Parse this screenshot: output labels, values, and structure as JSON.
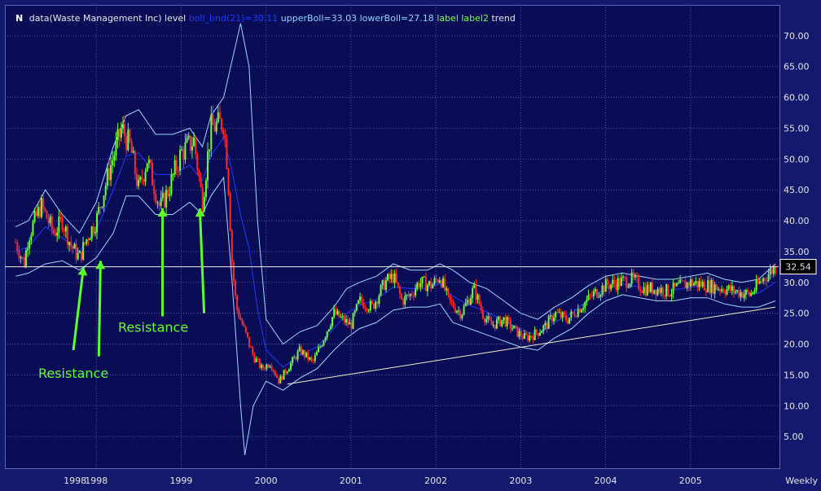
{
  "legend": {
    "symbol": "N",
    "data_label": "data(Waste Management Inc)",
    "level_label": "level",
    "boll_label": "boll_bnd(21)=30.11",
    "upper_label": "upperBoll=33.03",
    "lower_label": "lowerBoll=27.18",
    "label_label": "label",
    "label2_label": "label2",
    "trend_label": "trend"
  },
  "period_label": "Weekly",
  "colors": {
    "background": "#0a0c55",
    "grid": "#4a5aa8",
    "bull": "#6cff3c",
    "bear": "#ff2a2a",
    "boll_mid": "#1e3cff",
    "boll_bands": "#9fd8ff",
    "level_line": "#f2f2e0",
    "trend_line": "#f2f2c8",
    "annotation": "#5cff2a"
  },
  "chart_data": {
    "type": "candlestick",
    "title": "data(Waste Management Inc)",
    "ylim": [
      0,
      75
    ],
    "y_ticks": [
      "5.00",
      "10.00",
      "15.00",
      "20.00",
      "25.00",
      "30.00",
      "35.00",
      "40.00",
      "45.00",
      "50.00",
      "55.00",
      "60.00",
      "65.00",
      "70.00"
    ],
    "x_ticks": [
      "1998",
      "1998",
      "1999",
      "2000",
      "2001",
      "2002",
      "2003",
      "2004",
      "2005"
    ],
    "x_tick_positions": [
      1997.75,
      1998.0,
      1999.0,
      2000.0,
      2001.0,
      2002.0,
      2003.0,
      2004.0,
      2005.0
    ],
    "xlim": [
      1997.0,
      2006.0
    ],
    "last_price": "32.54",
    "level": 32.54,
    "close_path": [
      [
        1997.05,
        36.5
      ],
      [
        1997.15,
        33.0
      ],
      [
        1997.2,
        37.5
      ],
      [
        1997.35,
        42.5
      ],
      [
        1997.5,
        38.0
      ],
      [
        1997.6,
        40.0
      ],
      [
        1997.7,
        36.0
      ],
      [
        1997.8,
        34.0
      ],
      [
        1997.9,
        37.5
      ],
      [
        1998.0,
        40.0
      ],
      [
        1998.15,
        48.0
      ],
      [
        1998.3,
        55.0
      ],
      [
        1998.4,
        52.0
      ],
      [
        1998.5,
        45.0
      ],
      [
        1998.6,
        50.0
      ],
      [
        1998.75,
        42.0
      ],
      [
        1998.85,
        45.0
      ],
      [
        1999.0,
        51.0
      ],
      [
        1999.15,
        53.0
      ],
      [
        1999.25,
        43.0
      ],
      [
        1999.35,
        55.0
      ],
      [
        1999.5,
        56.0
      ],
      [
        1999.55,
        48.0
      ],
      [
        1999.6,
        33.0
      ],
      [
        1999.65,
        26.0
      ],
      [
        1999.75,
        22.0
      ],
      [
        1999.85,
        18.0
      ],
      [
        1999.95,
        16.0
      ],
      [
        2000.05,
        17.0
      ],
      [
        2000.15,
        14.0
      ],
      [
        2000.25,
        16.0
      ],
      [
        2000.4,
        19.0
      ],
      [
        2000.55,
        17.0
      ],
      [
        2000.65,
        20.0
      ],
      [
        2000.8,
        25.0
      ],
      [
        2000.9,
        24.0
      ],
      [
        2001.0,
        23.0
      ],
      [
        2001.1,
        27.0
      ],
      [
        2001.25,
        26.0
      ],
      [
        2001.4,
        30.0
      ],
      [
        2001.5,
        31.0
      ],
      [
        2001.6,
        27.0
      ],
      [
        2001.7,
        28.0
      ],
      [
        2001.8,
        30.0
      ],
      [
        2001.95,
        29.5
      ],
      [
        2002.05,
        31.0
      ],
      [
        2002.15,
        27.0
      ],
      [
        2002.3,
        25.0
      ],
      [
        2002.45,
        29.0
      ],
      [
        2002.55,
        25.0
      ],
      [
        2002.65,
        23.0
      ],
      [
        2002.8,
        24.0
      ],
      [
        2002.95,
        22.0
      ],
      [
        2003.05,
        21.0
      ],
      [
        2003.15,
        21.5
      ],
      [
        2003.3,
        23.0
      ],
      [
        2003.4,
        25.0
      ],
      [
        2003.55,
        24.0
      ],
      [
        2003.7,
        26.0
      ],
      [
        2003.85,
        28.0
      ],
      [
        2004.0,
        29.5
      ],
      [
        2004.15,
        30.0
      ],
      [
        2004.3,
        30.5
      ],
      [
        2004.45,
        29.0
      ],
      [
        2004.6,
        29.0
      ],
      [
        2004.75,
        28.5
      ],
      [
        2004.9,
        29.5
      ],
      [
        2005.0,
        30.0
      ],
      [
        2005.2,
        29.5
      ],
      [
        2005.4,
        29.0
      ],
      [
        2005.55,
        28.5
      ],
      [
        2005.7,
        28.0
      ],
      [
        2005.85,
        30.5
      ],
      [
        2006.0,
        32.5
      ]
    ],
    "upper_band": [
      [
        1997.05,
        39.0
      ],
      [
        1997.2,
        40.0
      ],
      [
        1997.4,
        45.0
      ],
      [
        1997.6,
        41.0
      ],
      [
        1997.8,
        38.0
      ],
      [
        1998.0,
        43.0
      ],
      [
        1998.2,
        52.0
      ],
      [
        1998.35,
        57.0
      ],
      [
        1998.5,
        58.0
      ],
      [
        1998.7,
        54.0
      ],
      [
        1998.9,
        54.0
      ],
      [
        1999.1,
        55.0
      ],
      [
        1999.25,
        52.0
      ],
      [
        1999.35,
        57.0
      ],
      [
        1999.5,
        60.0
      ],
      [
        1999.6,
        66.0
      ],
      [
        1999.7,
        72.0
      ],
      [
        1999.8,
        65.0
      ],
      [
        1999.9,
        40.0
      ],
      [
        2000.0,
        24.0
      ],
      [
        2000.2,
        20.0
      ],
      [
        2000.4,
        22.0
      ],
      [
        2000.6,
        23.0
      ],
      [
        2000.8,
        26.0
      ],
      [
        2000.95,
        29.0
      ],
      [
        2001.1,
        30.0
      ],
      [
        2001.3,
        31.0
      ],
      [
        2001.5,
        33.0
      ],
      [
        2001.7,
        32.0
      ],
      [
        2001.9,
        32.0
      ],
      [
        2002.05,
        33.0
      ],
      [
        2002.2,
        32.0
      ],
      [
        2002.4,
        30.0
      ],
      [
        2002.6,
        29.0
      ],
      [
        2002.8,
        27.0
      ],
      [
        2003.0,
        25.0
      ],
      [
        2003.2,
        24.0
      ],
      [
        2003.4,
        26.0
      ],
      [
        2003.6,
        27.5
      ],
      [
        2003.8,
        29.5
      ],
      [
        2004.0,
        31.0
      ],
      [
        2004.2,
        31.5
      ],
      [
        2004.4,
        31.0
      ],
      [
        2004.6,
        30.5
      ],
      [
        2004.8,
        30.5
      ],
      [
        2005.0,
        31.0
      ],
      [
        2005.2,
        31.5
      ],
      [
        2005.4,
        30.5
      ],
      [
        2005.6,
        30.0
      ],
      [
        2005.8,
        30.5
      ],
      [
        2006.0,
        33.0
      ]
    ],
    "lower_band": [
      [
        1997.05,
        31.0
      ],
      [
        1997.2,
        31.5
      ],
      [
        1997.4,
        33.0
      ],
      [
        1997.6,
        33.5
      ],
      [
        1997.8,
        32.0
      ],
      [
        1998.0,
        34.0
      ],
      [
        1998.2,
        38.0
      ],
      [
        1998.35,
        44.0
      ],
      [
        1998.5,
        44.0
      ],
      [
        1998.7,
        41.0
      ],
      [
        1998.9,
        41.0
      ],
      [
        1999.1,
        43.0
      ],
      [
        1999.25,
        41.0
      ],
      [
        1999.35,
        44.0
      ],
      [
        1999.5,
        47.0
      ],
      [
        1999.6,
        30.0
      ],
      [
        1999.7,
        10.0
      ],
      [
        1999.75,
        2.0
      ],
      [
        1999.85,
        10.0
      ],
      [
        2000.0,
        14.0
      ],
      [
        2000.2,
        12.5
      ],
      [
        2000.4,
        14.5
      ],
      [
        2000.6,
        16.0
      ],
      [
        2000.8,
        19.0
      ],
      [
        2000.95,
        21.0
      ],
      [
        2001.1,
        22.5
      ],
      [
        2001.3,
        23.5
      ],
      [
        2001.5,
        25.5
      ],
      [
        2001.7,
        26.0
      ],
      [
        2001.9,
        26.0
      ],
      [
        2002.05,
        26.5
      ],
      [
        2002.2,
        23.5
      ],
      [
        2002.4,
        22.5
      ],
      [
        2002.6,
        21.5
      ],
      [
        2002.8,
        20.5
      ],
      [
        2003.0,
        19.5
      ],
      [
        2003.2,
        19.0
      ],
      [
        2003.4,
        21.0
      ],
      [
        2003.6,
        22.5
      ],
      [
        2003.8,
        25.0
      ],
      [
        2004.0,
        27.0
      ],
      [
        2004.2,
        28.0
      ],
      [
        2004.4,
        27.5
      ],
      [
        2004.6,
        27.0
      ],
      [
        2004.8,
        27.0
      ],
      [
        2005.0,
        27.5
      ],
      [
        2005.2,
        27.5
      ],
      [
        2005.4,
        26.5
      ],
      [
        2005.6,
        26.0
      ],
      [
        2005.8,
        26.0
      ],
      [
        2006.0,
        27.0
      ]
    ],
    "trend": [
      [
        2000.25,
        13.5
      ],
      [
        2006.0,
        26.0
      ]
    ],
    "annotations": [
      {
        "text": "Resistance",
        "x": 1997.73,
        "y": 14.5
      },
      {
        "text": "Resistance",
        "x": 1998.67,
        "y": 22.0
      }
    ],
    "arrows": [
      {
        "from": [
          1997.73,
          19.0
        ],
        "to": [
          1997.85,
          32.5
        ]
      },
      {
        "from": [
          1998.03,
          18.0
        ],
        "to": [
          1998.05,
          33.5
        ]
      },
      {
        "from": [
          1998.78,
          24.5
        ],
        "to": [
          1998.78,
          42.0
        ]
      },
      {
        "from": [
          1999.27,
          25.0
        ],
        "to": [
          1999.22,
          42.0
        ]
      }
    ]
  }
}
